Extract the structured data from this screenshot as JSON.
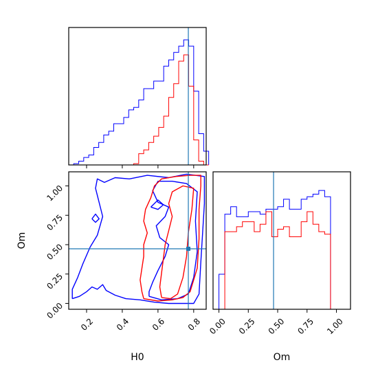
{
  "chart_data": {
    "type": "corner",
    "title": "",
    "colors": {
      "series_a": "#0000ff",
      "series_b": "#ff0000",
      "truth": "#1f77b4",
      "frame": "#000000"
    },
    "parameters": [
      "H0",
      "Om"
    ],
    "truth": {
      "H0": 0.77,
      "Om": 0.465
    },
    "axes": {
      "H0": {
        "label": "H0",
        "range": [
          0.1,
          0.87
        ],
        "ticks": [
          0.2,
          0.4,
          0.6,
          0.8
        ],
        "tick_labels": [
          "0.2",
          "0.4",
          "0.6",
          "0.8"
        ]
      },
      "Om": {
        "label": "Om",
        "range": [
          -0.05,
          1.12
        ],
        "ticks": [
          0.0,
          0.25,
          0.5,
          0.75,
          1.0
        ],
        "tick_labels": [
          "0.00",
          "0.25",
          "0.50",
          "0.75",
          "1.00"
        ]
      }
    },
    "hist_H0": {
      "bin_edges": [
        0.1,
        0.128,
        0.156,
        0.184,
        0.212,
        0.24,
        0.268,
        0.296,
        0.324,
        0.352,
        0.38,
        0.408,
        0.436,
        0.464,
        0.492,
        0.52,
        0.548,
        0.576,
        0.604,
        0.632,
        0.66,
        0.688,
        0.716,
        0.744,
        0.772,
        0.8,
        0.828,
        0.856,
        0.884
      ],
      "series": [
        {
          "name": "",
          "color": "#0000ff",
          "counts": [
            0.0,
            0.01,
            0.03,
            0.06,
            0.08,
            0.14,
            0.18,
            0.24,
            0.27,
            0.33,
            0.33,
            0.38,
            0.44,
            0.46,
            0.52,
            0.61,
            0.61,
            0.67,
            0.67,
            0.79,
            0.84,
            0.9,
            0.95,
            1.0,
            0.95,
            0.59,
            0.25,
            0.11
          ]
        },
        {
          "name": "",
          "color": "#ff0000",
          "counts": [
            0.0,
            0.0,
            0.0,
            0.0,
            0.0,
            0.0,
            0.0,
            0.0,
            0.0,
            0.0,
            0.0,
            0.0,
            0.0,
            0.01,
            0.09,
            0.12,
            0.18,
            0.23,
            0.3,
            0.39,
            0.54,
            0.65,
            0.83,
            0.88,
            0.63,
            0.2,
            0.03,
            0.0
          ]
        }
      ]
    },
    "hist_Om": {
      "bin_edges": [
        -0.05,
        0.0,
        0.05,
        0.1,
        0.15,
        0.2,
        0.25,
        0.3,
        0.35,
        0.4,
        0.45,
        0.5,
        0.55,
        0.6,
        0.65,
        0.7,
        0.75,
        0.8,
        0.85,
        0.9,
        0.95,
        1.0,
        1.05,
        1.12
      ],
      "series": [
        {
          "name": "",
          "color": "#0000ff",
          "counts": [
            0.0,
            0.28,
            0.76,
            0.82,
            0.74,
            0.74,
            0.78,
            0.78,
            0.76,
            0.8,
            0.8,
            0.82,
            0.88,
            0.8,
            0.8,
            0.88,
            0.9,
            0.92,
            0.95,
            0.9,
            0.0,
            0.0,
            0.0
          ]
        },
        {
          "name": "",
          "color": "#ff0000",
          "counts": [
            0.0,
            0.0,
            0.62,
            0.62,
            0.66,
            0.7,
            0.7,
            0.62,
            0.68,
            0.78,
            0.58,
            0.64,
            0.66,
            0.58,
            0.58,
            0.7,
            0.78,
            0.68,
            0.62,
            0.6,
            0.0,
            0.0,
            0.0
          ]
        }
      ]
    },
    "contours_2d": [
      {
        "color": "#0000ff",
        "level": "outer",
        "points": [
          [
            0.12,
            0.04
          ],
          [
            0.16,
            0.06
          ],
          [
            0.2,
            0.1
          ],
          [
            0.23,
            0.14
          ],
          [
            0.26,
            0.12
          ],
          [
            0.29,
            0.16
          ],
          [
            0.31,
            0.11
          ],
          [
            0.36,
            0.07
          ],
          [
            0.42,
            0.04
          ],
          [
            0.5,
            0.03
          ],
          [
            0.58,
            0.01
          ],
          [
            0.66,
            0.0
          ],
          [
            0.74,
            0.0
          ],
          [
            0.8,
            0.0
          ],
          [
            0.83,
            0.08
          ],
          [
            0.84,
            0.35
          ],
          [
            0.85,
            0.6
          ],
          [
            0.86,
            0.85
          ],
          [
            0.86,
            1.08
          ],
          [
            0.76,
            1.1
          ],
          [
            0.66,
            1.07
          ],
          [
            0.54,
            1.09
          ],
          [
            0.44,
            1.06
          ],
          [
            0.36,
            1.07
          ],
          [
            0.3,
            1.03
          ],
          [
            0.26,
            1.06
          ],
          [
            0.25,
            0.98
          ],
          [
            0.27,
            0.86
          ],
          [
            0.29,
            0.74
          ],
          [
            0.26,
            0.58
          ],
          [
            0.22,
            0.48
          ],
          [
            0.18,
            0.34
          ],
          [
            0.15,
            0.22
          ],
          [
            0.12,
            0.12
          ],
          [
            0.12,
            0.04
          ]
        ]
      },
      {
        "color": "#0000ff",
        "level": "inner",
        "points": [
          [
            0.55,
            0.06
          ],
          [
            0.62,
            0.03
          ],
          [
            0.71,
            0.04
          ],
          [
            0.77,
            0.08
          ],
          [
            0.8,
            0.22
          ],
          [
            0.82,
            0.44
          ],
          [
            0.81,
            0.7
          ],
          [
            0.82,
            0.95
          ],
          [
            0.76,
            1.02
          ],
          [
            0.68,
            1.04
          ],
          [
            0.6,
            1.04
          ],
          [
            0.57,
            0.96
          ],
          [
            0.6,
            0.86
          ],
          [
            0.66,
            0.82
          ],
          [
            0.64,
            0.74
          ],
          [
            0.59,
            0.66
          ],
          [
            0.61,
            0.56
          ],
          [
            0.66,
            0.5
          ],
          [
            0.64,
            0.4
          ],
          [
            0.6,
            0.28
          ],
          [
            0.57,
            0.18
          ],
          [
            0.55,
            0.1
          ],
          [
            0.55,
            0.06
          ]
        ]
      },
      {
        "color": "#0000ff",
        "level": "island",
        "points": [
          [
            0.23,
            0.72
          ],
          [
            0.25,
            0.69
          ],
          [
            0.27,
            0.72
          ],
          [
            0.25,
            0.76
          ],
          [
            0.23,
            0.72
          ]
        ]
      },
      {
        "color": "#0000ff",
        "level": "island",
        "points": [
          [
            0.56,
            0.82
          ],
          [
            0.6,
            0.8
          ],
          [
            0.63,
            0.84
          ],
          [
            0.6,
            0.88
          ],
          [
            0.56,
            0.82
          ]
        ]
      },
      {
        "color": "#ff0000",
        "level": "outer",
        "points": [
          [
            0.52,
            0.04
          ],
          [
            0.6,
            0.02
          ],
          [
            0.68,
            0.03
          ],
          [
            0.74,
            0.05
          ],
          [
            0.78,
            0.1
          ],
          [
            0.82,
            0.3
          ],
          [
            0.83,
            0.55
          ],
          [
            0.83,
            0.8
          ],
          [
            0.84,
            1.0
          ],
          [
            0.84,
            1.09
          ],
          [
            0.78,
            1.09
          ],
          [
            0.7,
            1.08
          ],
          [
            0.62,
            1.06
          ],
          [
            0.58,
            1.0
          ],
          [
            0.56,
            0.9
          ],
          [
            0.53,
            0.8
          ],
          [
            0.52,
            0.7
          ],
          [
            0.54,
            0.6
          ],
          [
            0.52,
            0.5
          ],
          [
            0.52,
            0.4
          ],
          [
            0.51,
            0.3
          ],
          [
            0.5,
            0.2
          ],
          [
            0.51,
            0.1
          ],
          [
            0.52,
            0.04
          ]
        ]
      },
      {
        "color": "#ff0000",
        "level": "inner",
        "points": [
          [
            0.62,
            0.05
          ],
          [
            0.67,
            0.04
          ],
          [
            0.71,
            0.08
          ],
          [
            0.74,
            0.22
          ],
          [
            0.76,
            0.4
          ],
          [
            0.77,
            0.6
          ],
          [
            0.79,
            0.8
          ],
          [
            0.8,
            0.98
          ],
          [
            0.74,
            1.0
          ],
          [
            0.68,
            0.95
          ],
          [
            0.66,
            0.85
          ],
          [
            0.68,
            0.74
          ],
          [
            0.66,
            0.62
          ],
          [
            0.64,
            0.5
          ],
          [
            0.63,
            0.38
          ],
          [
            0.62,
            0.26
          ],
          [
            0.61,
            0.14
          ],
          [
            0.62,
            0.05
          ]
        ]
      }
    ]
  }
}
